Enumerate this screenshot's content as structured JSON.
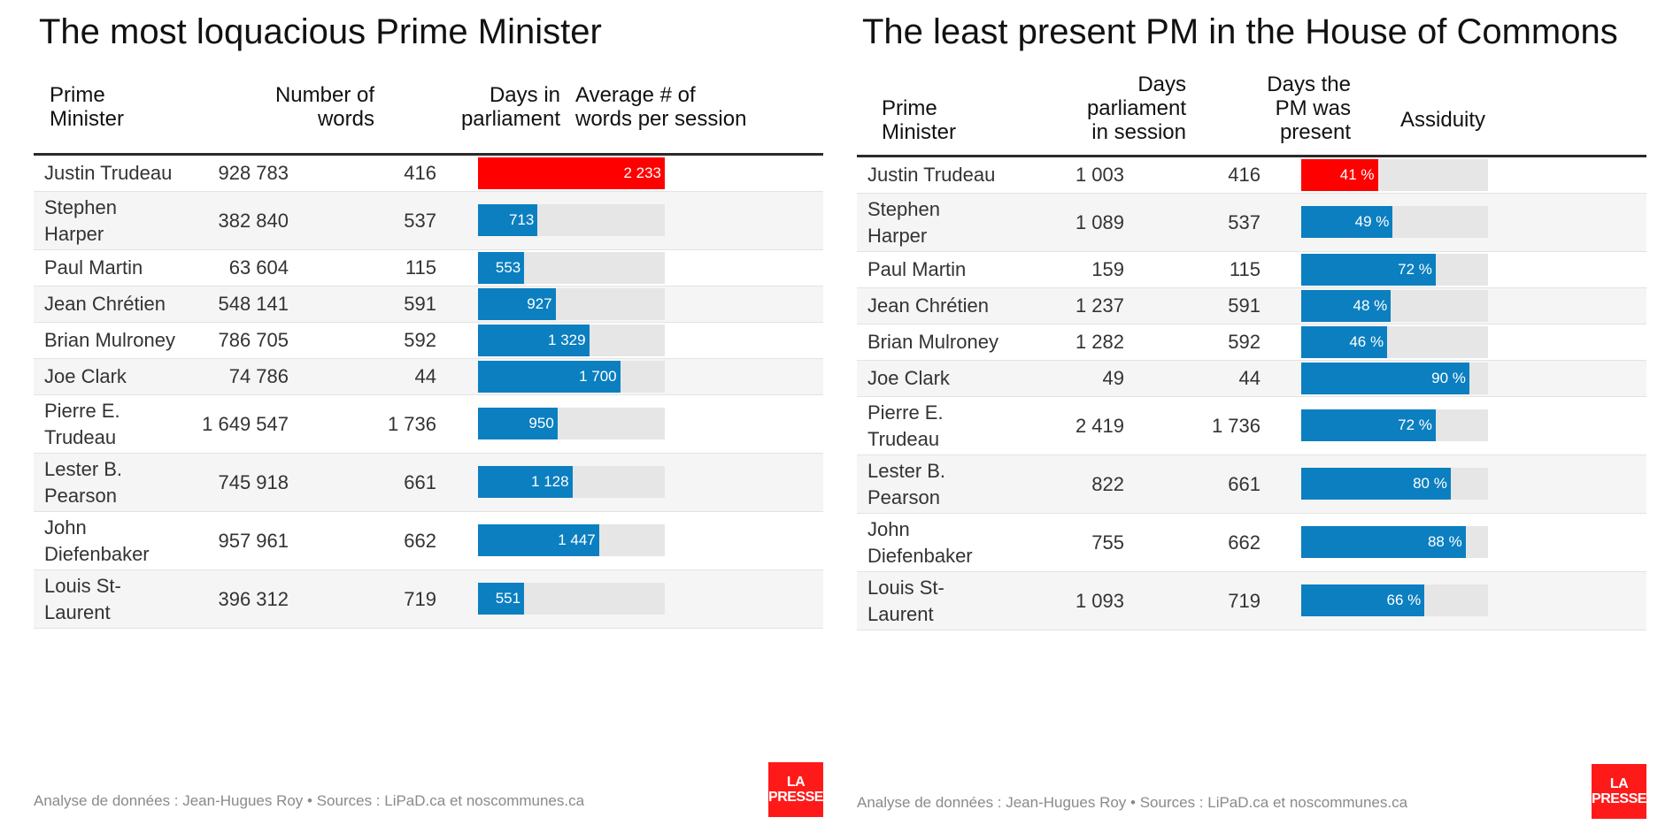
{
  "source_note": "Analyse de données : Jean-Hugues Roy • Sources : LiPaD.ca et noscommunes.ca",
  "logo": {
    "line1": "LA",
    "line2": "PRESSE",
    "color": "#ff1a1a"
  },
  "colors": {
    "highlight": "#ff0000",
    "bar": "#0b7fc0",
    "track": "#e6e6e6"
  },
  "left": {
    "title": "The most loquacious Prime Minister",
    "headers": [
      "Prime\nMinister",
      "Number of\nwords",
      "Days in\nparliament",
      "Average # of\nwords per session"
    ],
    "rows": [
      {
        "name": "Justin Trudeau",
        "words": "928 783",
        "days": "416",
        "avg": "2 233"
      },
      {
        "name": "Stephen\nHarper",
        "words": "382 840",
        "days": "537",
        "avg": "713"
      },
      {
        "name": "Paul Martin",
        "words": "63 604",
        "days": "115",
        "avg": "553"
      },
      {
        "name": "Jean Chrétien",
        "words": "548 141",
        "days": "591",
        "avg": "927"
      },
      {
        "name": "Brian Mulroney",
        "words": "786 705",
        "days": "592",
        "avg": "1 329"
      },
      {
        "name": "Joe Clark",
        "words": "74 786",
        "days": "44",
        "avg": "1 700"
      },
      {
        "name": "Pierre E.\nTrudeau",
        "words": "1 649 547",
        "days": "1 736",
        "avg": "950"
      },
      {
        "name": "Lester B.\nPearson",
        "words": "745 918",
        "days": "661",
        "avg": "1 128"
      },
      {
        "name": "John\nDiefenbaker",
        "words": "957 961",
        "days": "662",
        "avg": "1 447"
      },
      {
        "name": "Louis St-\nLaurent",
        "words": "396 312",
        "days": "719",
        "avg": "551"
      }
    ]
  },
  "right": {
    "title": "The least present PM in the House of Commons",
    "headers": [
      "Prime\nMinister",
      "Days\nparliament\nin session",
      "Days the\nPM was\npresent",
      "Assiduity"
    ],
    "rows": [
      {
        "name": "Justin Trudeau",
        "session": "1 003",
        "present": "416",
        "assiduity": "41 %"
      },
      {
        "name": "Stephen\nHarper",
        "session": "1 089",
        "present": "537",
        "assiduity": "49 %"
      },
      {
        "name": "Paul Martin",
        "session": "159",
        "present": "115",
        "assiduity": "72 %"
      },
      {
        "name": "Jean Chrétien",
        "session": "1 237",
        "present": "591",
        "assiduity": "48 %"
      },
      {
        "name": "Brian Mulroney",
        "session": "1 282",
        "present": "592",
        "assiduity": "46 %"
      },
      {
        "name": "Joe Clark",
        "session": "49",
        "present": "44",
        "assiduity": "90 %"
      },
      {
        "name": "Pierre E.\nTrudeau",
        "session": "2 419",
        "present": "1 736",
        "assiduity": "72 %"
      },
      {
        "name": "Lester B.\nPearson",
        "session": "822",
        "present": "661",
        "assiduity": "80 %"
      },
      {
        "name": "John\nDiefenbaker",
        "session": "755",
        "present": "662",
        "assiduity": "88 %"
      },
      {
        "name": "Louis St-\nLaurent",
        "session": "1 093",
        "present": "719",
        "assiduity": "66 %"
      }
    ]
  },
  "chart_data": [
    {
      "type": "bar",
      "title": "The most loquacious Prime Minister",
      "categories": [
        "Justin Trudeau",
        "Stephen Harper",
        "Paul Martin",
        "Jean Chrétien",
        "Brian Mulroney",
        "Joe Clark",
        "Pierre E. Trudeau",
        "Lester B. Pearson",
        "John Diefenbaker",
        "Louis St-Laurent"
      ],
      "series": [
        {
          "name": "Average # of words per session",
          "values": [
            2233,
            713,
            553,
            927,
            1329,
            1700,
            950,
            1128,
            1447,
            551
          ]
        }
      ],
      "xlim": [
        0,
        2233
      ],
      "highlight": "Justin Trudeau"
    },
    {
      "type": "bar",
      "title": "The least present PM in the House of Commons",
      "categories": [
        "Justin Trudeau",
        "Stephen Harper",
        "Paul Martin",
        "Jean Chrétien",
        "Brian Mulroney",
        "Joe Clark",
        "Pierre E. Trudeau",
        "Lester B. Pearson",
        "John Diefenbaker",
        "Louis St-Laurent"
      ],
      "series": [
        {
          "name": "Assiduity",
          "values": [
            41,
            49,
            72,
            48,
            46,
            90,
            72,
            80,
            88,
            66
          ]
        }
      ],
      "xlim": [
        0,
        100
      ],
      "highlight": "Justin Trudeau"
    }
  ]
}
